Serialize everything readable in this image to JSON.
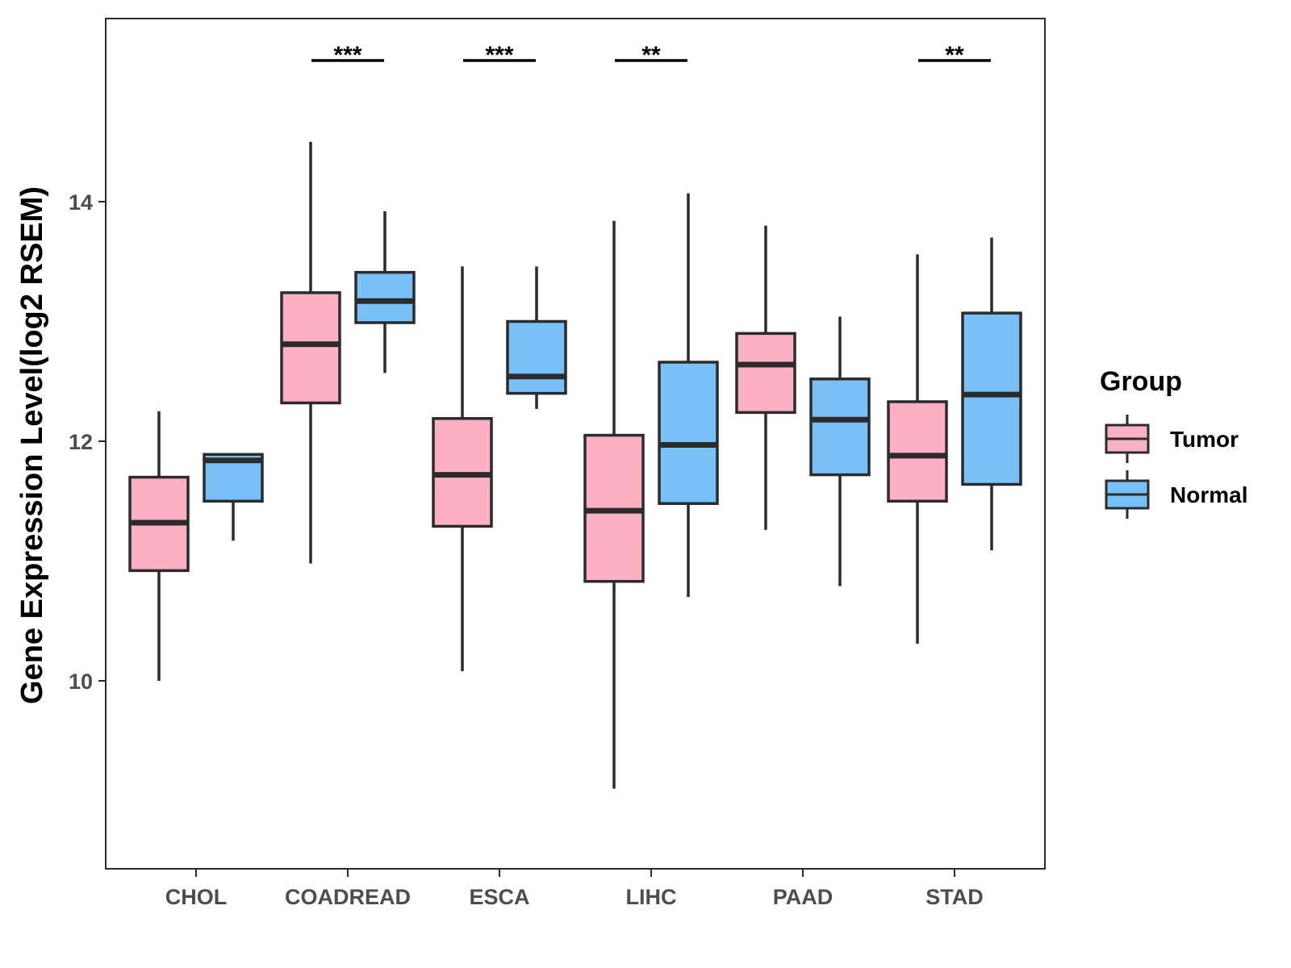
{
  "chart_data": {
    "type": "boxplot",
    "title": "",
    "xlabel": "",
    "ylabel": "Gene Expression Level(log2 RSEM)",
    "ylim": [
      8.5,
      15.6
    ],
    "yticks": [
      10,
      12,
      14
    ],
    "grid": false,
    "categories": [
      "CHOL",
      "COADREAD",
      "ESCA",
      "LIHC",
      "PAAD",
      "STAD"
    ],
    "legend": {
      "title": "Group",
      "position": "right",
      "items": [
        {
          "name": "Tumor",
          "color": "#FBB1C1"
        },
        {
          "name": "Normal",
          "color": "#78C1F8"
        }
      ]
    },
    "series": [
      {
        "name": "Tumor",
        "color": "#FBB1C1",
        "boxes": [
          {
            "category": "CHOL",
            "min": 10.0,
            "q1": 10.92,
            "median": 11.32,
            "q3": 11.7,
            "max": 12.25
          },
          {
            "category": "COADREAD",
            "min": 10.98,
            "q1": 12.32,
            "median": 12.81,
            "q3": 13.24,
            "max": 14.5
          },
          {
            "category": "ESCA",
            "min": 10.08,
            "q1": 11.29,
            "median": 11.72,
            "q3": 12.19,
            "max": 13.46
          },
          {
            "category": "LIHC",
            "min": 9.1,
            "q1": 10.83,
            "median": 11.42,
            "q3": 12.05,
            "max": 13.84
          },
          {
            "category": "PAAD",
            "min": 11.26,
            "q1": 12.24,
            "median": 12.64,
            "q3": 12.9,
            "max": 13.8
          },
          {
            "category": "STAD",
            "min": 10.31,
            "q1": 11.5,
            "median": 11.88,
            "q3": 12.33,
            "max": 13.56
          }
        ]
      },
      {
        "name": "Normal",
        "color": "#78C1F8",
        "boxes": [
          {
            "category": "CHOL",
            "min": 11.17,
            "q1": 11.5,
            "median": 11.84,
            "q3": 11.89,
            "max": 11.89
          },
          {
            "category": "COADREAD",
            "min": 12.57,
            "q1": 12.99,
            "median": 13.17,
            "q3": 13.41,
            "max": 13.92
          },
          {
            "category": "ESCA",
            "min": 12.27,
            "q1": 12.4,
            "median": 12.54,
            "q3": 13.0,
            "max": 13.46
          },
          {
            "category": "LIHC",
            "min": 10.7,
            "q1": 11.48,
            "median": 11.97,
            "q3": 12.66,
            "max": 14.07
          },
          {
            "category": "PAAD",
            "min": 10.79,
            "q1": 11.72,
            "median": 12.18,
            "q3": 12.52,
            "max": 13.04
          },
          {
            "category": "STAD",
            "min": 11.09,
            "q1": 11.64,
            "median": 12.39,
            "q3": 13.07,
            "max": 13.7
          }
        ]
      }
    ],
    "significance": [
      {
        "category": "COADREAD",
        "label": "***"
      },
      {
        "category": "ESCA",
        "label": "***"
      },
      {
        "category": "LIHC",
        "label": "**"
      },
      {
        "category": "STAD",
        "label": "**"
      }
    ]
  }
}
